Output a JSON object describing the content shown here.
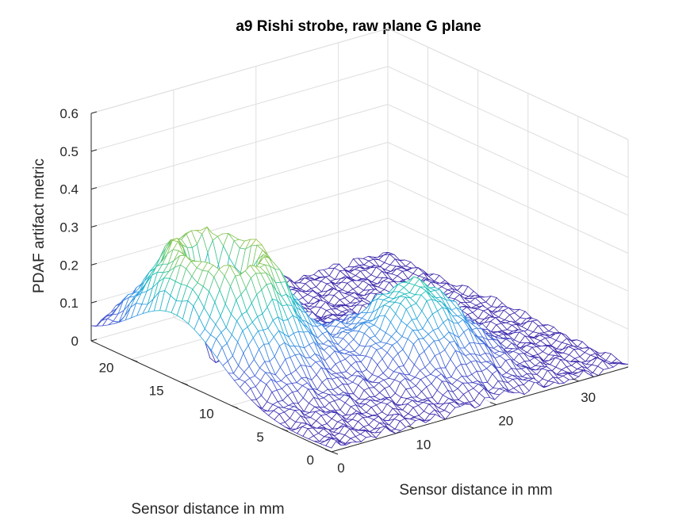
{
  "chart_data": {
    "type": "surface",
    "title": "a9 Rishi strobe, raw plane G plane",
    "xlabel": "Sensor distance in mm",
    "ylabel": "Sensor distance in mm",
    "zlabel": "PDAF artifact metric",
    "xlim": [
      0,
      36
    ],
    "ylim": [
      0,
      24
    ],
    "zlim": [
      0,
      0.6
    ],
    "xticks": [
      "0",
      "10",
      "20",
      "30"
    ],
    "yticks": [
      "0",
      "5",
      "10",
      "15",
      "20"
    ],
    "zticks": [
      "0",
      "0.1",
      "0.2",
      "0.3",
      "0.4",
      "0.5",
      "0.6"
    ],
    "grid": true,
    "colormap": "parula",
    "colormap_colors": [
      "#3e26a8",
      "#4662d8",
      "#2f9be6",
      "#16bfb6",
      "#72c96a",
      "#d7ba1c",
      "#f9fb15"
    ],
    "background_level": 0.01,
    "features": [
      {
        "type": "ring_peak",
        "center": [
          6,
          16
        ],
        "peak": 0.41,
        "inner_zero_radius_mm": 2.5,
        "note": "near-zero hollow at center"
      },
      {
        "type": "peak",
        "center": [
          20,
          8
        ],
        "peak": 0.21
      }
    ]
  }
}
